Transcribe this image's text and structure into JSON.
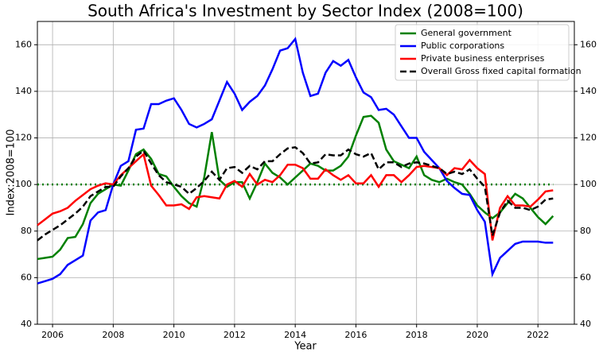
{
  "chart_data": {
    "type": "line",
    "title": "South Africa's Investment by Sector Index (2008=100)",
    "xlabel": "Year",
    "ylabel": "Index:2008=100",
    "x": [
      2005.5,
      2005.75,
      2006,
      2006.25,
      2006.5,
      2006.75,
      2007,
      2007.25,
      2007.5,
      2007.75,
      2008,
      2008.25,
      2008.5,
      2008.75,
      2009,
      2009.25,
      2009.5,
      2009.75,
      2010,
      2010.25,
      2010.5,
      2010.75,
      2011,
      2011.25,
      2011.5,
      2011.75,
      2012,
      2012.25,
      2012.5,
      2012.75,
      2013,
      2013.25,
      2013.5,
      2013.75,
      2014,
      2014.25,
      2014.5,
      2014.75,
      2015,
      2015.25,
      2015.5,
      2015.75,
      2016,
      2016.25,
      2016.5,
      2016.75,
      2017,
      2017.25,
      2017.5,
      2017.75,
      2018,
      2018.25,
      2018.5,
      2018.75,
      2019,
      2019.25,
      2019.5,
      2019.75,
      2020,
      2020.25,
      2020.5,
      2020.75,
      2021,
      2021.25,
      2021.5,
      2021.75,
      2022,
      2022.25,
      2022.5
    ],
    "series": [
      {
        "name": "General government",
        "color": "#008000",
        "dash": "",
        "values": [
          68,
          68.5,
          69,
          72,
          77,
          77.5,
          83,
          92,
          96,
          98,
          100,
          99.5,
          106,
          113,
          115,
          111,
          104.5,
          103.5,
          99,
          95,
          92,
          90.5,
          103,
          122.5,
          102,
          99,
          101,
          101,
          94,
          101,
          109,
          105,
          103,
          100,
          103,
          106,
          109,
          108,
          106,
          106,
          108,
          112,
          121,
          129,
          129.5,
          126.5,
          115,
          110,
          108.5,
          107,
          112,
          104,
          102,
          101,
          102.5,
          101,
          100,
          96,
          91,
          88,
          85.5,
          88,
          92,
          96,
          94,
          90,
          86,
          83,
          86.5
        ]
      },
      {
        "name": "Public corporations",
        "color": "#0000ff",
        "dash": "",
        "values": [
          57.5,
          58.5,
          59.5,
          61.5,
          65.5,
          67.5,
          69.5,
          84.5,
          88,
          89,
          100,
          108,
          110,
          123.5,
          124,
          134.5,
          134.5,
          136,
          137,
          132,
          126,
          124.5,
          126,
          128,
          136,
          144,
          139,
          132,
          135.5,
          138,
          142.5,
          149.5,
          157.5,
          158.5,
          162.5,
          148,
          138,
          139,
          148,
          153,
          151,
          153.5,
          146,
          139.5,
          137.5,
          132,
          132.5,
          130,
          125,
          120,
          120,
          114,
          110.5,
          107,
          101.5,
          98.5,
          96,
          95.5,
          89,
          84,
          61.5,
          68.5,
          71.5,
          74.5,
          75.5,
          75.5,
          75.5,
          75,
          75
        ]
      },
      {
        "name": "Private business enterprises",
        "color": "#ff0000",
        "dash": "",
        "values": [
          82.5,
          85,
          87.5,
          88.5,
          90,
          93,
          95.5,
          98,
          99.5,
          100.5,
          100,
          104,
          107,
          110,
          113,
          99.5,
          95.5,
          91,
          91,
          91.5,
          89.5,
          94.5,
          95,
          94.5,
          94,
          100,
          101.5,
          99,
          104.5,
          100,
          102,
          101,
          104,
          108.5,
          108.5,
          107,
          102.5,
          102.5,
          106.5,
          104,
          102,
          104,
          100.5,
          100.5,
          104,
          99,
          104,
          104,
          101,
          104,
          107.5,
          108,
          107.5,
          107,
          104,
          107,
          106.5,
          110.5,
          107,
          104.5,
          76,
          90,
          95,
          91,
          91,
          90.5,
          93.5,
          97,
          97.5
        ]
      },
      {
        "name": "Overall Gross fixed capital formation",
        "color": "#000000",
        "dash": "8 4",
        "values": [
          76,
          78.5,
          80.5,
          82.5,
          85,
          87.5,
          90.5,
          95,
          97,
          99,
          99,
          103.5,
          107,
          112,
          114.5,
          109,
          104,
          101,
          100,
          99,
          96,
          98.5,
          101.5,
          105.5,
          102,
          107,
          107.5,
          105,
          108,
          106.5,
          110,
          110,
          113,
          115.5,
          116,
          113.5,
          109,
          109.5,
          113,
          112.5,
          112.5,
          115,
          113,
          112,
          113.5,
          106.5,
          109.5,
          109.5,
          107.5,
          109,
          109.5,
          109,
          108,
          107,
          104.5,
          105.5,
          104.5,
          106.5,
          102.5,
          99,
          78,
          88,
          93,
          90,
          90,
          89,
          90.5,
          93.5,
          94
        ]
      }
    ],
    "reference_line": 100,
    "reference_color": "#008000",
    "xlim": [
      2005.5,
      2023.2
    ],
    "xticks": [
      2006,
      2008,
      2010,
      2012,
      2014,
      2016,
      2018,
      2020,
      2022
    ],
    "ylim": [
      40,
      170
    ],
    "yticks": [
      40,
      60,
      80,
      100,
      120,
      140,
      160
    ],
    "grid": true,
    "legend": "upper right",
    "right_axis": true
  }
}
